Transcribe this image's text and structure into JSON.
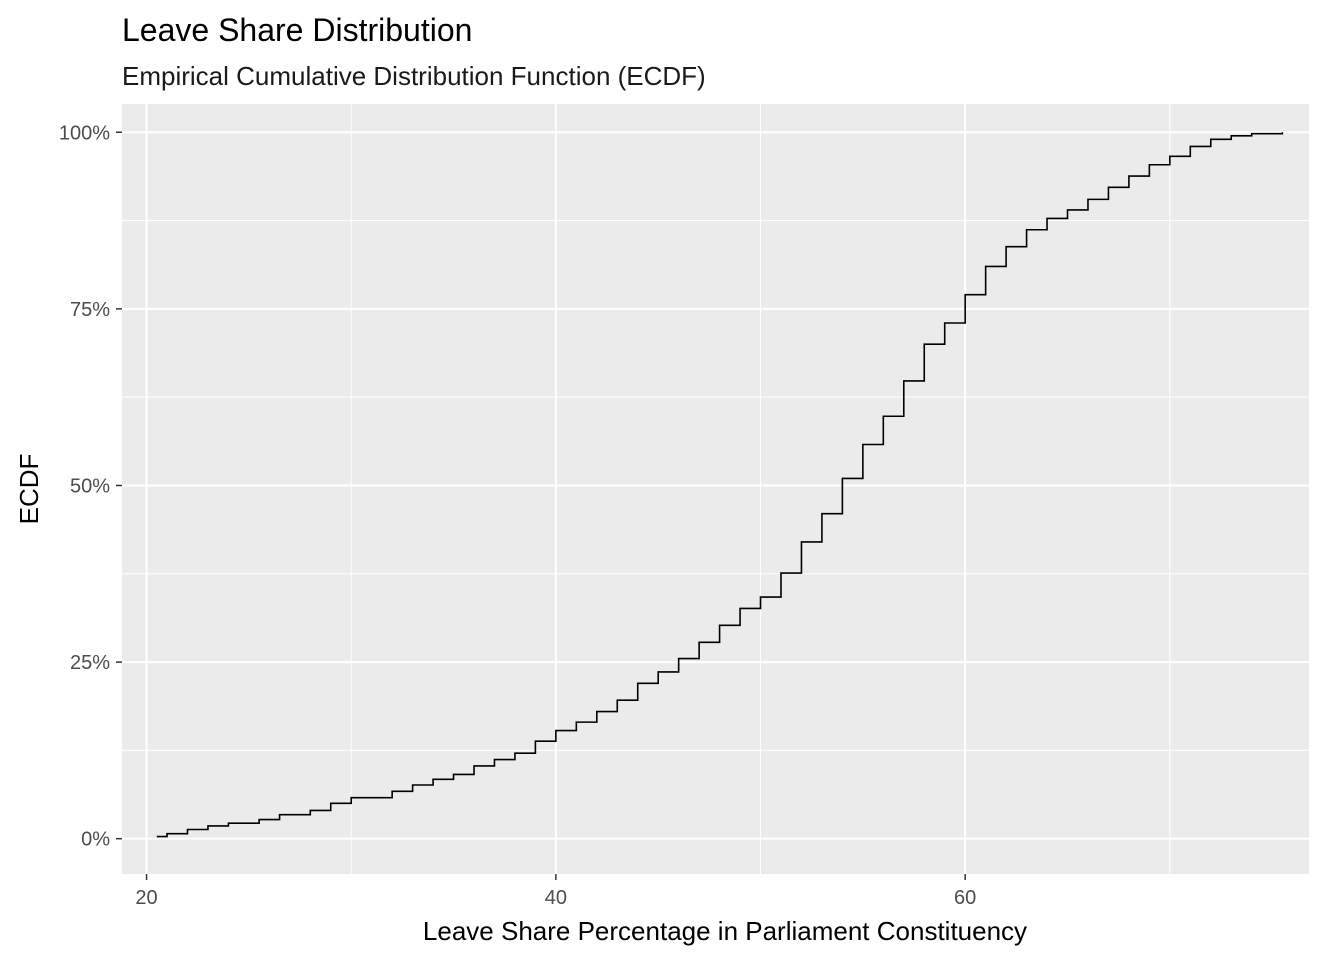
{
  "chart_data": {
    "type": "line",
    "step": true,
    "title": "Leave Share Distribution",
    "subtitle": "Empirical Cumulative Distribution Function (ECDF)",
    "xlabel": "Leave Share Percentage in Parliament Constituency",
    "ylabel": "ECDF",
    "xlim": [
      18.8,
      76.8
    ],
    "ylim": [
      -0.05,
      1.04
    ],
    "x_ticks": [
      20,
      40,
      60
    ],
    "x_tick_labels": [
      "20",
      "40",
      "60"
    ],
    "x_minor_ticks": [
      30,
      50,
      70
    ],
    "y_ticks": [
      0,
      0.25,
      0.5,
      0.75,
      1.0
    ],
    "y_tick_labels": [
      "0%",
      "25%",
      "50%",
      "75%",
      "100%"
    ],
    "y_minor_ticks": [
      0.125,
      0.375,
      0.625,
      0.875
    ],
    "grid": true,
    "legend": "none",
    "colors": {
      "panel": "#ebebeb",
      "grid": "#ffffff",
      "line": "#000000"
    },
    "series": [
      {
        "x": [
          20.5,
          21.0,
          22.0,
          23.0,
          24.0,
          25.5,
          26.5,
          28.0,
          29.0,
          30.0,
          31.0,
          32.0,
          33.0,
          34.0,
          35.0,
          36.0,
          37.0,
          38.0,
          39.0,
          40.0,
          41.0,
          42.0,
          43.0,
          44.0,
          45.0,
          46.0,
          47.0,
          48.0,
          49.0,
          50.0,
          51.0,
          52.0,
          53.0,
          54.0,
          55.0,
          56.0,
          57.0,
          58.0,
          59.0,
          60.0,
          61.0,
          62.0,
          63.0,
          64.0,
          65.0,
          66.0,
          67.0,
          68.0,
          69.0,
          70.0,
          71.0,
          72.0,
          73.0,
          74.0,
          75.5
        ],
        "y": [
          0.003,
          0.007,
          0.013,
          0.018,
          0.022,
          0.027,
          0.034,
          0.04,
          0.05,
          0.058,
          0.058,
          0.067,
          0.076,
          0.084,
          0.091,
          0.103,
          0.112,
          0.121,
          0.138,
          0.153,
          0.165,
          0.18,
          0.196,
          0.22,
          0.236,
          0.255,
          0.278,
          0.302,
          0.326,
          0.342,
          0.376,
          0.42,
          0.46,
          0.51,
          0.558,
          0.598,
          0.648,
          0.7,
          0.73,
          0.77,
          0.81,
          0.838,
          0.862,
          0.878,
          0.89,
          0.905,
          0.922,
          0.938,
          0.954,
          0.966,
          0.98,
          0.99,
          0.995,
          0.998,
          1.0
        ]
      }
    ]
  }
}
